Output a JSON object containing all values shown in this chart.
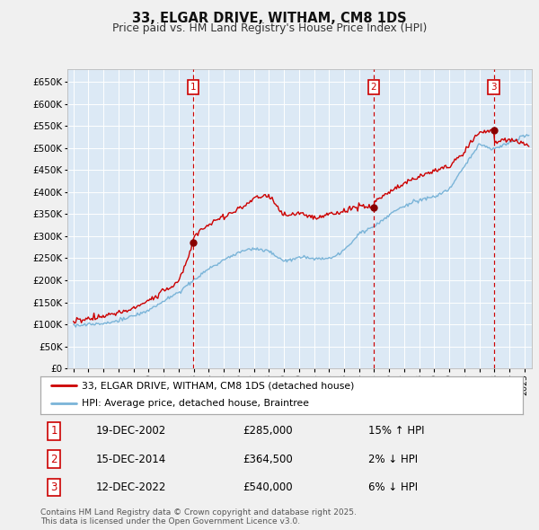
{
  "title": "33, ELGAR DRIVE, WITHAM, CM8 1DS",
  "subtitle": "Price paid vs. HM Land Registry's House Price Index (HPI)",
  "fig_bg": "#f0f0f0",
  "plot_bg": "#dce9f5",
  "ylim": [
    0,
    680000
  ],
  "yticks": [
    0,
    50000,
    100000,
    150000,
    200000,
    250000,
    300000,
    350000,
    400000,
    450000,
    500000,
    550000,
    600000,
    650000
  ],
  "xlim_start": 1994.6,
  "xlim_end": 2025.5,
  "sales": [
    {
      "num": 1,
      "date": "19-DEC-2002",
      "price": 285000,
      "price_str": "£285,000",
      "year": 2002.97,
      "label": "15% ↑ HPI"
    },
    {
      "num": 2,
      "date": "15-DEC-2014",
      "price": 364500,
      "price_str": "£364,500",
      "year": 2014.97,
      "label": "2% ↓ HPI"
    },
    {
      "num": 3,
      "date": "12-DEC-2022",
      "price": 540000,
      "price_str": "£540,000",
      "year": 2022.95,
      "label": "6% ↓ HPI"
    }
  ],
  "legend_line1": "33, ELGAR DRIVE, WITHAM, CM8 1DS (detached house)",
  "legend_line2": "HPI: Average price, detached house, Braintree",
  "footer_line1": "Contains HM Land Registry data © Crown copyright and database right 2025.",
  "footer_line2": "This data is licensed under the Open Government Licence v3.0.",
  "red_color": "#cc0000",
  "blue_color": "#7ab4d8",
  "grid_color": "#ffffff",
  "hpi_x": [
    1995,
    1996,
    1997,
    1998,
    1999,
    2000,
    2001,
    2002,
    2003,
    2004,
    2005,
    2006,
    2007,
    2008,
    2009,
    2010,
    2011,
    2012,
    2013,
    2014,
    2015,
    2016,
    2017,
    2018,
    2019,
    2020,
    2021,
    2022,
    2023,
    2024,
    2025
  ],
  "hpi_y": [
    97000,
    99000,
    102000,
    108000,
    118000,
    132000,
    152000,
    172000,
    200000,
    225000,
    245000,
    262000,
    272000,
    265000,
    242000,
    252000,
    248000,
    248000,
    265000,
    305000,
    322000,
    348000,
    368000,
    382000,
    390000,
    408000,
    458000,
    510000,
    498000,
    512000,
    530000
  ],
  "red_x": [
    1995,
    1996,
    1997,
    1998,
    1999,
    2000,
    2001,
    2002,
    2002.97,
    2003,
    2004,
    2005,
    2006,
    2007,
    2008,
    2009,
    2010,
    2011,
    2012,
    2013,
    2014,
    2014.97,
    2015,
    2016,
    2017,
    2018,
    2019,
    2020,
    2021,
    2022,
    2022.95,
    2023,
    2024,
    2025
  ],
  "red_y": [
    108000,
    112000,
    118000,
    125000,
    138000,
    152000,
    175000,
    195000,
    285000,
    300000,
    328000,
    345000,
    360000,
    385000,
    392000,
    348000,
    352000,
    342000,
    348000,
    358000,
    368000,
    364500,
    378000,
    398000,
    420000,
    435000,
    448000,
    458000,
    492000,
    535000,
    540000,
    515000,
    520000,
    510000
  ]
}
